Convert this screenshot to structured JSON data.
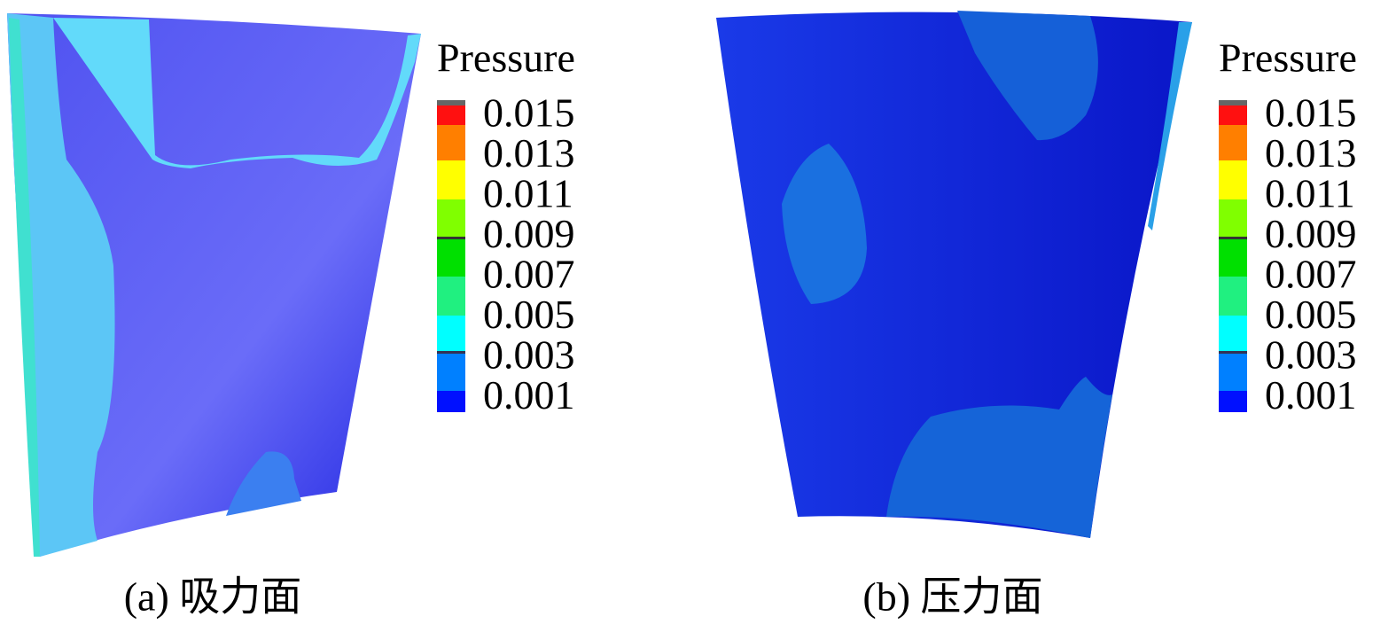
{
  "panels": [
    {
      "legend": {
        "title": "Pressure",
        "labels": [
          "0.015",
          "0.013",
          "0.011",
          "0.009",
          "0.007",
          "0.005",
          "0.003",
          "0.001"
        ]
      },
      "caption": "(a) 吸力面"
    },
    {
      "legend": {
        "title": "Pressure",
        "labels": [
          "0.015",
          "0.013",
          "0.011",
          "0.009",
          "0.007",
          "0.005",
          "0.003",
          "0.001"
        ]
      },
      "caption": "(b) 压力面"
    }
  ]
}
